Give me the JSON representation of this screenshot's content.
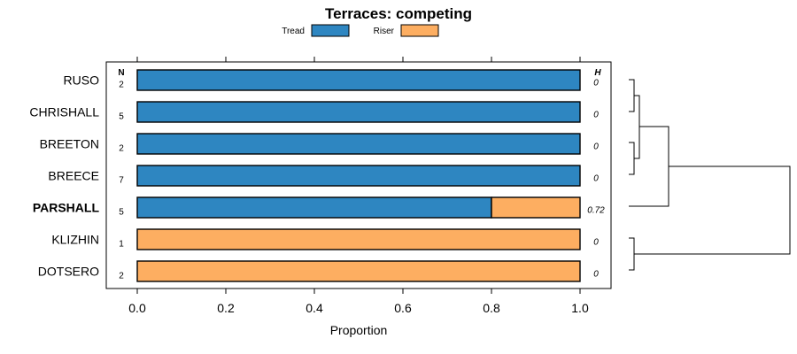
{
  "chart_data": {
    "type": "bar",
    "stacked": true,
    "orientation": "horizontal",
    "title": "Terraces: competing",
    "xlabel": "Proportion",
    "xlim": [
      0,
      1
    ],
    "xticks": [
      "0.0",
      "0.2",
      "0.4",
      "0.6",
      "0.8",
      "1.0"
    ],
    "n_header": "N",
    "h_header": "H",
    "legend": [
      {
        "name": "Tread",
        "color": "#2e86c1"
      },
      {
        "name": "Riser",
        "color": "#fdae61"
      }
    ],
    "categories": [
      "RUSO",
      "CHRISHALL",
      "BREETON",
      "BREECE",
      "PARSHALL",
      "KLIZHIN",
      "DOTSERO"
    ],
    "highlight": "PARSHALL",
    "n": [
      "2",
      "5",
      "2",
      "7",
      "5",
      "1",
      "2"
    ],
    "h": [
      "0",
      "0",
      "0",
      "0",
      "0.72",
      "0",
      "0"
    ],
    "series": [
      {
        "name": "Tread",
        "values": [
          1.0,
          1.0,
          1.0,
          1.0,
          0.8,
          0.0,
          0.0
        ]
      },
      {
        "name": "Riser",
        "values": [
          0.0,
          0.0,
          0.0,
          0.0,
          0.2,
          1.0,
          1.0
        ]
      }
    ]
  }
}
